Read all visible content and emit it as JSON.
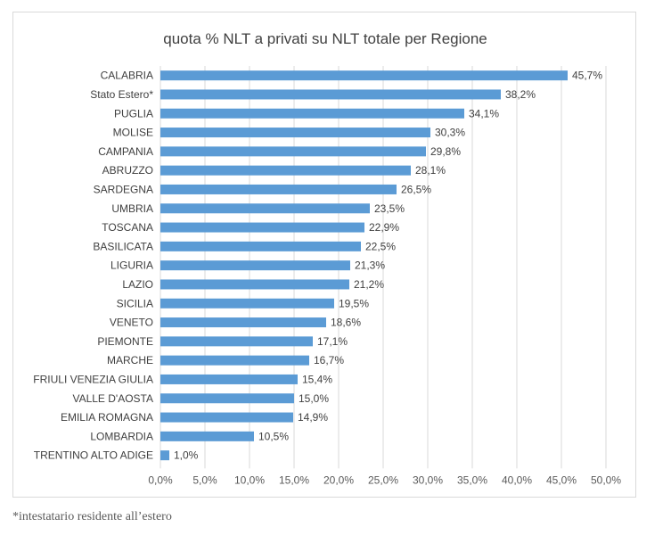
{
  "chart_data": {
    "type": "bar",
    "orientation": "horizontal",
    "title": "quota % NLT a privati su NLT totale per Regione",
    "xlabel": "",
    "ylabel": "",
    "xlim": [
      0,
      50
    ],
    "x_ticks": [
      "0,0%",
      "5,0%",
      "10,0%",
      "15,0%",
      "20,0%",
      "25,0%",
      "30,0%",
      "35,0%",
      "40,0%",
      "45,0%",
      "50,0%"
    ],
    "grid": "vertical",
    "legend": "none",
    "bar_color": "#5b9bd5",
    "categories": [
      "CALABRIA",
      "Stato Estero*",
      "PUGLIA",
      "MOLISE",
      "CAMPANIA",
      "ABRUZZO",
      "SARDEGNA",
      "UMBRIA",
      "TOSCANA",
      "BASILICATA",
      "LIGURIA",
      "LAZIO",
      "SICILIA",
      "VENETO",
      "PIEMONTE",
      "MARCHE",
      "FRIULI VENEZIA GIULIA",
      "VALLE D'AOSTA",
      "EMILIA ROMAGNA",
      "LOMBARDIA",
      "TRENTINO ALTO ADIGE"
    ],
    "values": [
      45.7,
      38.2,
      34.1,
      30.3,
      29.8,
      28.1,
      26.5,
      23.5,
      22.9,
      22.5,
      21.3,
      21.2,
      19.5,
      18.6,
      17.1,
      16.7,
      15.4,
      15.0,
      14.9,
      10.5,
      1.0
    ],
    "data_labels": [
      "45,7%",
      "38,2%",
      "34,1%",
      "30,3%",
      "29,8%",
      "28,1%",
      "26,5%",
      "23,5%",
      "22,9%",
      "22,5%",
      "21,3%",
      "21,2%",
      "19,5%",
      "18,6%",
      "17,1%",
      "16,7%",
      "15,4%",
      "15,0%",
      "14,9%",
      "10,5%",
      "1,0%"
    ]
  },
  "footnote": "*intestatario residente all’estero"
}
